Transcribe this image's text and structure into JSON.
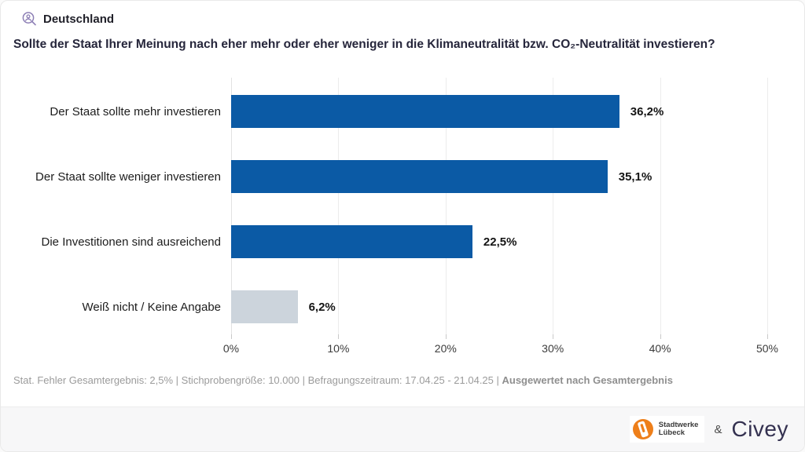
{
  "header": {
    "region": "Deutschland"
  },
  "title": "Sollte der Staat Ihrer Meinung nach eher mehr oder eher weniger in die Klimaneutralität bzw. CO₂-Neutralität investieren?",
  "chart_data": {
    "type": "bar",
    "orientation": "horizontal",
    "title": "Sollte der Staat Ihrer Meinung nach eher mehr oder eher weniger in die Klimaneutralität bzw. CO₂-Neutralität investieren?",
    "categories": [
      "Der Staat sollte mehr investieren",
      "Der Staat sollte weniger investieren",
      "Die Investitionen sind ausreichend",
      "Weiß nicht / Keine Angabe"
    ],
    "values": [
      36.2,
      35.1,
      22.5,
      6.2
    ],
    "value_labels": [
      "36,2%",
      "35,1%",
      "22,5%",
      "6,2%"
    ],
    "bar_colors": [
      "#0b5aa5",
      "#0b5aa5",
      "#0b5aa5",
      "#ccd4dc"
    ],
    "xlim": [
      0,
      50
    ],
    "x_ticks": [
      "0%",
      "10%",
      "20%",
      "30%",
      "40%",
      "50%"
    ],
    "grid": true,
    "legend": false
  },
  "footer": {
    "stats": "Stat. Fehler Gesamtergebnis: 2,5% | Stichprobengröße: 10.000 | Befragungszeitraum: 17.04.25 - 21.04.25 | ",
    "weighting": "Ausgewertet nach Gesamtergebnis"
  },
  "branding": {
    "partner_line1": "Stadtwerke",
    "partner_line2": "Lübeck",
    "ampersand": "&",
    "civey": "Civey"
  },
  "colors": {
    "bar_blue": "#0b5aa5",
    "bar_gray": "#ccd4dc",
    "icon_purple": "#8d7fb5",
    "partner_orange": "#ee7f1a",
    "civey_navy": "#343150"
  }
}
